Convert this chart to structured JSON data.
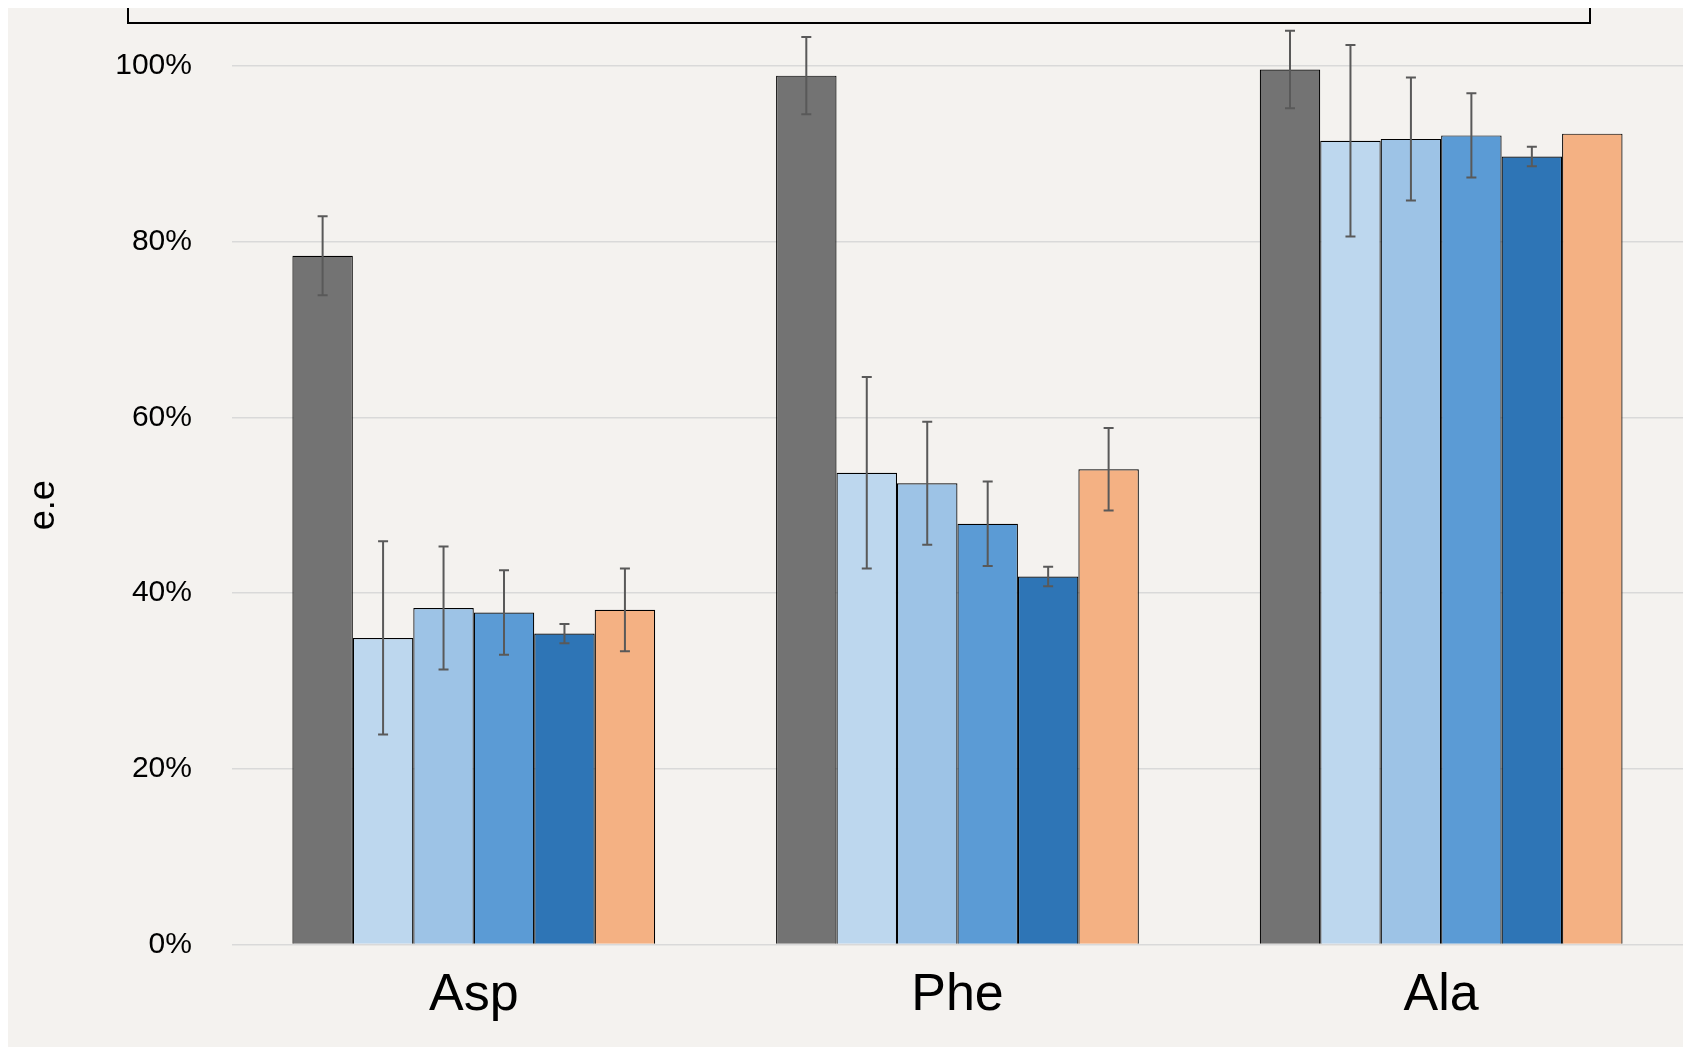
{
  "chart_data": {
    "type": "bar",
    "ylabel": "e.e",
    "categories": [
      "Asp",
      "Phe",
      "Ala"
    ],
    "series": [
      {
        "color": "#737373",
        "values": [
          78.4,
          98.9,
          99.6
        ],
        "errors": [
          4.5,
          4.4,
          4.4
        ]
      },
      {
        "color": "#bdd7ee",
        "values": [
          34.9,
          53.7,
          91.5
        ],
        "errors": [
          11,
          10.9,
          10.9
        ]
      },
      {
        "color": "#9dc3e6",
        "values": [
          38.3,
          52.5,
          91.7
        ],
        "errors": [
          7,
          7,
          7
        ]
      },
      {
        "color": "#5b9bd5",
        "values": [
          37.8,
          47.9,
          92.1
        ],
        "errors": [
          4.8,
          4.8,
          4.8
        ]
      },
      {
        "color": "#2e75b6",
        "values": [
          35.4,
          41.9,
          89.7
        ],
        "errors": [
          1.1,
          1.1,
          1.1
        ]
      },
      {
        "color": "#f4b183",
        "values": [
          38.1,
          54.1,
          92.3
        ],
        "errors": [
          4.7,
          4.7,
          null
        ]
      }
    ],
    "ylim": [
      0,
      100
    ],
    "yticks": [
      {
        "value": 0,
        "label": "0%"
      },
      {
        "value": 20,
        "label": "20%"
      },
      {
        "value": 40,
        "label": "40%"
      },
      {
        "value": 60,
        "label": "60%"
      },
      {
        "value": 80,
        "label": "80%"
      },
      {
        "value": 100,
        "label": "100%"
      }
    ],
    "grid": "y",
    "legend": false
  }
}
